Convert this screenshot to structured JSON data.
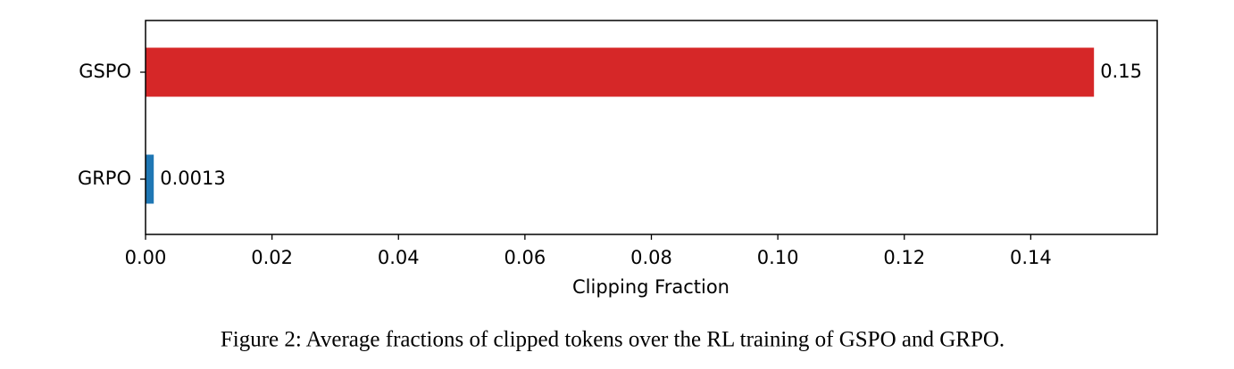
{
  "chart_data": {
    "type": "hbar",
    "categories": [
      "GSPO",
      "GRPO"
    ],
    "values": [
      0.15,
      0.0013
    ],
    "colors": [
      "#d62728",
      "#1f77b4"
    ],
    "xlabel": "Clipping Fraction",
    "xlim": [
      0,
      0.16
    ],
    "xticks": [
      {
        "value": 0,
        "label": "0.00"
      },
      0.02,
      0.04,
      0.06,
      0.08,
      {
        "value": 0.1,
        "label": "0.10"
      },
      0.12,
      0.14
    ],
    "caption": "Figure 2: Average fractions of clipped tokens over the RL training of GSPO and GRPO."
  }
}
